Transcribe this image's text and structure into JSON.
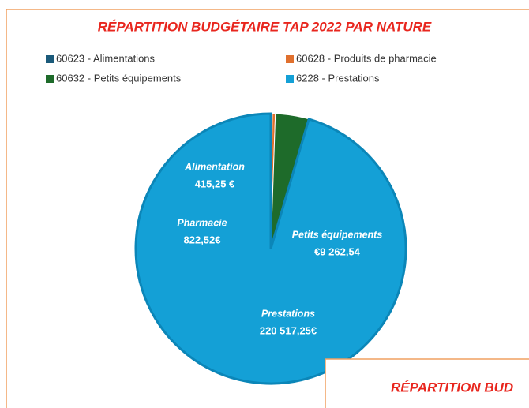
{
  "chart_data": [
    {
      "type": "pie",
      "title": "RÉPARTITION BUDGÉTAIRE TAP 2022 PAR NATURE",
      "categories": [
        "60623 - Alimentations",
        "60628 - Produits de pharmacie",
        "60632 - Petits équipements",
        "6228 - Prestations"
      ],
      "label_names": [
        "Alimentation",
        "Pharmacie",
        "Petits équipements",
        "Prestations"
      ],
      "values": [
        415.25,
        822.52,
        9262.54,
        220517.25
      ],
      "value_labels": [
        "415,25 €",
        "822,52€",
        "€9 262,54",
        "220 517,25€"
      ],
      "colors": [
        "#1b5a7a",
        "#e0702e",
        "#1e6b2a",
        "#14a0d6"
      ]
    },
    {
      "type": "pie",
      "title": "RÉPARTITION BUD"
    }
  ]
}
